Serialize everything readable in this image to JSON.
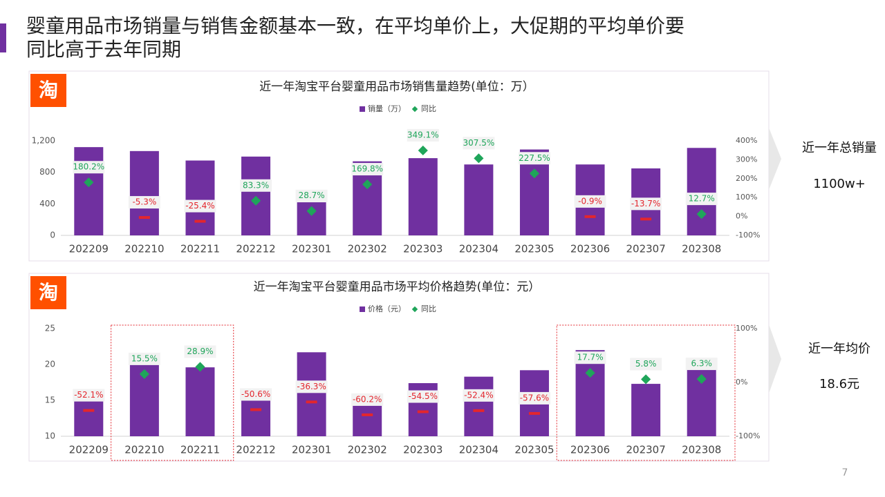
{
  "title_lines": [
    "婴童用品市场销量与销售金额基本一致，在平均单价上，大促期的平均单价要",
    "同比高于去年同期"
  ],
  "logo": "淘",
  "side_notes": [
    {
      "label": "近一年总销量",
      "value": "1100w+"
    },
    {
      "label": "近一年均价",
      "value": "18.6元"
    }
  ],
  "page_number": "7",
  "chart_data": [
    {
      "type": "bar",
      "title": "近一年淘宝平台婴童用品市场销售量趋势(单位：万）",
      "categories": [
        "202209",
        "202210",
        "202211",
        "202212",
        "202301",
        "202302",
        "202303",
        "202304",
        "202305",
        "202306",
        "202307",
        "202308"
      ],
      "series": [
        {
          "name": "销量（万）",
          "color": "#7030a0",
          "values": [
            1120,
            1070,
            950,
            1000,
            420,
            940,
            980,
            900,
            1090,
            900,
            850,
            1110
          ]
        },
        {
          "name": "同比",
          "type": "scatter",
          "axis": "y2",
          "color": "#1fa55a",
          "negative_color": "#e3262d",
          "values": [
            180.2,
            -5.3,
            -25.4,
            83.3,
            28.7,
            169.8,
            349.1,
            307.5,
            227.5,
            -0.9,
            -13.7,
            12.7
          ],
          "value_labels": [
            "180.2%",
            "-5.3%",
            "-25.4%",
            "83.3%",
            "28.7%",
            "169.8%",
            "349.1%",
            "307.5%",
            "227.5%",
            "-0.9%",
            "-13.7%",
            "12.7%"
          ]
        }
      ],
      "ylim": [
        0,
        1200
      ],
      "yticks": [
        0,
        400,
        800,
        {
          "value": 1200,
          "label": "1,200"
        }
      ],
      "y2lim": [
        -100,
        400
      ],
      "y2ticks": [
        {
          "value": -100,
          "label": "-100%"
        },
        {
          "value": 0,
          "label": "0%"
        },
        {
          "value": 100,
          "label": "100%"
        },
        {
          "value": 200,
          "label": "200%"
        },
        {
          "value": 300,
          "label": "300%"
        },
        {
          "value": 400,
          "label": "400%"
        }
      ],
      "grid": false
    },
    {
      "type": "bar",
      "title": "近一年淘宝平台婴童用品市场平均价格趋势(单位：元）",
      "categories": [
        "202209",
        "202210",
        "202211",
        "202212",
        "202301",
        "202302",
        "202303",
        "202304",
        "202305",
        "202306",
        "202307",
        "202308"
      ],
      "series": [
        {
          "name": "价格（元）",
          "color": "#7030a0",
          "values": [
            14.9,
            20.0,
            19.6,
            15.0,
            21.7,
            14.3,
            17.4,
            18.3,
            19.2,
            22.0,
            17.3,
            19.3
          ]
        },
        {
          "name": "同比",
          "type": "scatter",
          "axis": "y2",
          "color": "#1fa55a",
          "negative_color": "#e3262d",
          "values": [
            -52.1,
            15.5,
            28.9,
            -50.6,
            -36.3,
            -60.2,
            -54.5,
            -52.4,
            -57.6,
            17.7,
            5.8,
            6.3
          ],
          "value_labels": [
            "-52.1%",
            "15.5%",
            "28.9%",
            "-50.6%",
            "-36.3%",
            "-60.2%",
            "-54.5%",
            "-52.4%",
            "-57.6%",
            "17.7%",
            "5.8%",
            "6.3%"
          ]
        }
      ],
      "ylim": [
        10,
        25
      ],
      "yticks": [
        10,
        15,
        20,
        25
      ],
      "y2lim": [
        -100,
        100
      ],
      "y2ticks": [
        {
          "value": -100,
          "label": "-100%"
        },
        {
          "value": 0,
          "label": "0%"
        },
        {
          "value": 100,
          "label": "100%"
        }
      ],
      "grid": false
    }
  ]
}
